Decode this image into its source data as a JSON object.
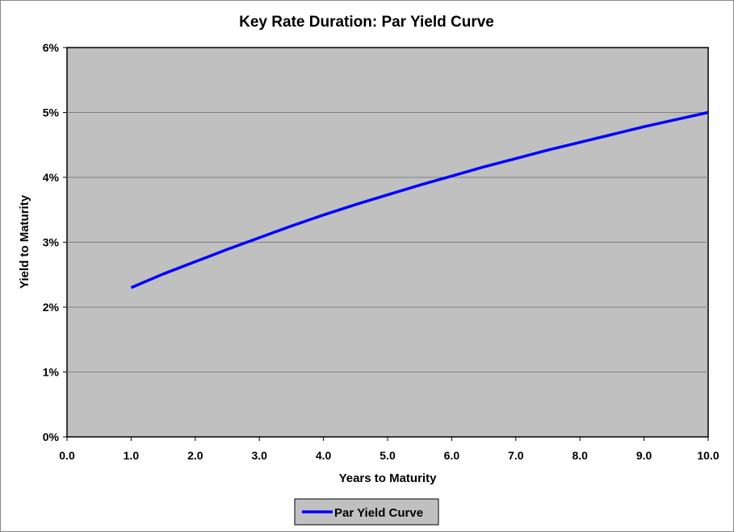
{
  "chart_data": {
    "type": "line",
    "title": "Key Rate Duration: Par Yield Curve",
    "xlabel": "Years to Maturity",
    "ylabel": "Yield to Maturity",
    "xlim": [
      0,
      10
    ],
    "ylim": [
      0,
      0.06
    ],
    "x_ticks": [
      "0.0",
      "1.0",
      "2.0",
      "3.0",
      "4.0",
      "5.0",
      "6.0",
      "7.0",
      "8.0",
      "9.0",
      "10.0"
    ],
    "y_ticks": [
      "0%",
      "1%",
      "2%",
      "3%",
      "4%",
      "5%",
      "6%"
    ],
    "grid": true,
    "legend_position": "bottom",
    "series": [
      {
        "name": "Par Yield Curve",
        "color": "#0000ff",
        "x": [
          1.0,
          1.5,
          2.0,
          2.5,
          3.0,
          3.5,
          4.0,
          4.5,
          5.0,
          5.5,
          6.0,
          6.5,
          7.0,
          7.5,
          8.0,
          8.5,
          9.0,
          9.5,
          10.0
        ],
        "y": [
          0.023,
          0.0251,
          0.027,
          0.0289,
          0.0307,
          0.0325,
          0.0342,
          0.0358,
          0.0373,
          0.0388,
          0.0402,
          0.0416,
          0.0429,
          0.0442,
          0.0454,
          0.0466,
          0.0478,
          0.0489,
          0.05
        ]
      }
    ],
    "colors": {
      "plot_background": "#c0c0c0",
      "gridline": "#7f7f7f",
      "line": "#0000ff"
    }
  }
}
